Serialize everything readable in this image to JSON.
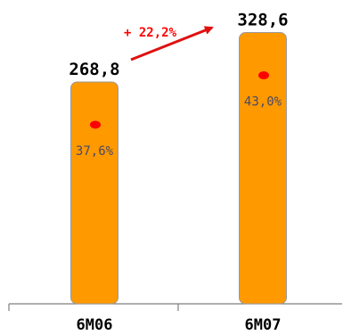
{
  "chart_data": {
    "type": "bar",
    "categories": [
      "6M06",
      "6M07"
    ],
    "values": [
      268.8,
      328.6
    ],
    "value_labels": [
      "268,8",
      "328,6"
    ],
    "percent_labels": [
      "37,6%",
      "43,0%"
    ],
    "growth_label": "+ 22,2%",
    "title": "",
    "xlabel": "",
    "ylabel": "",
    "ylim": [
      0,
      340
    ],
    "grid": false,
    "legend": "none",
    "colors": {
      "bar": "#ff9900",
      "bar_border": "#9a9a9a",
      "marker": "#ff0000",
      "growth": "#ff0000",
      "percent_text": "#4a4a66"
    }
  }
}
